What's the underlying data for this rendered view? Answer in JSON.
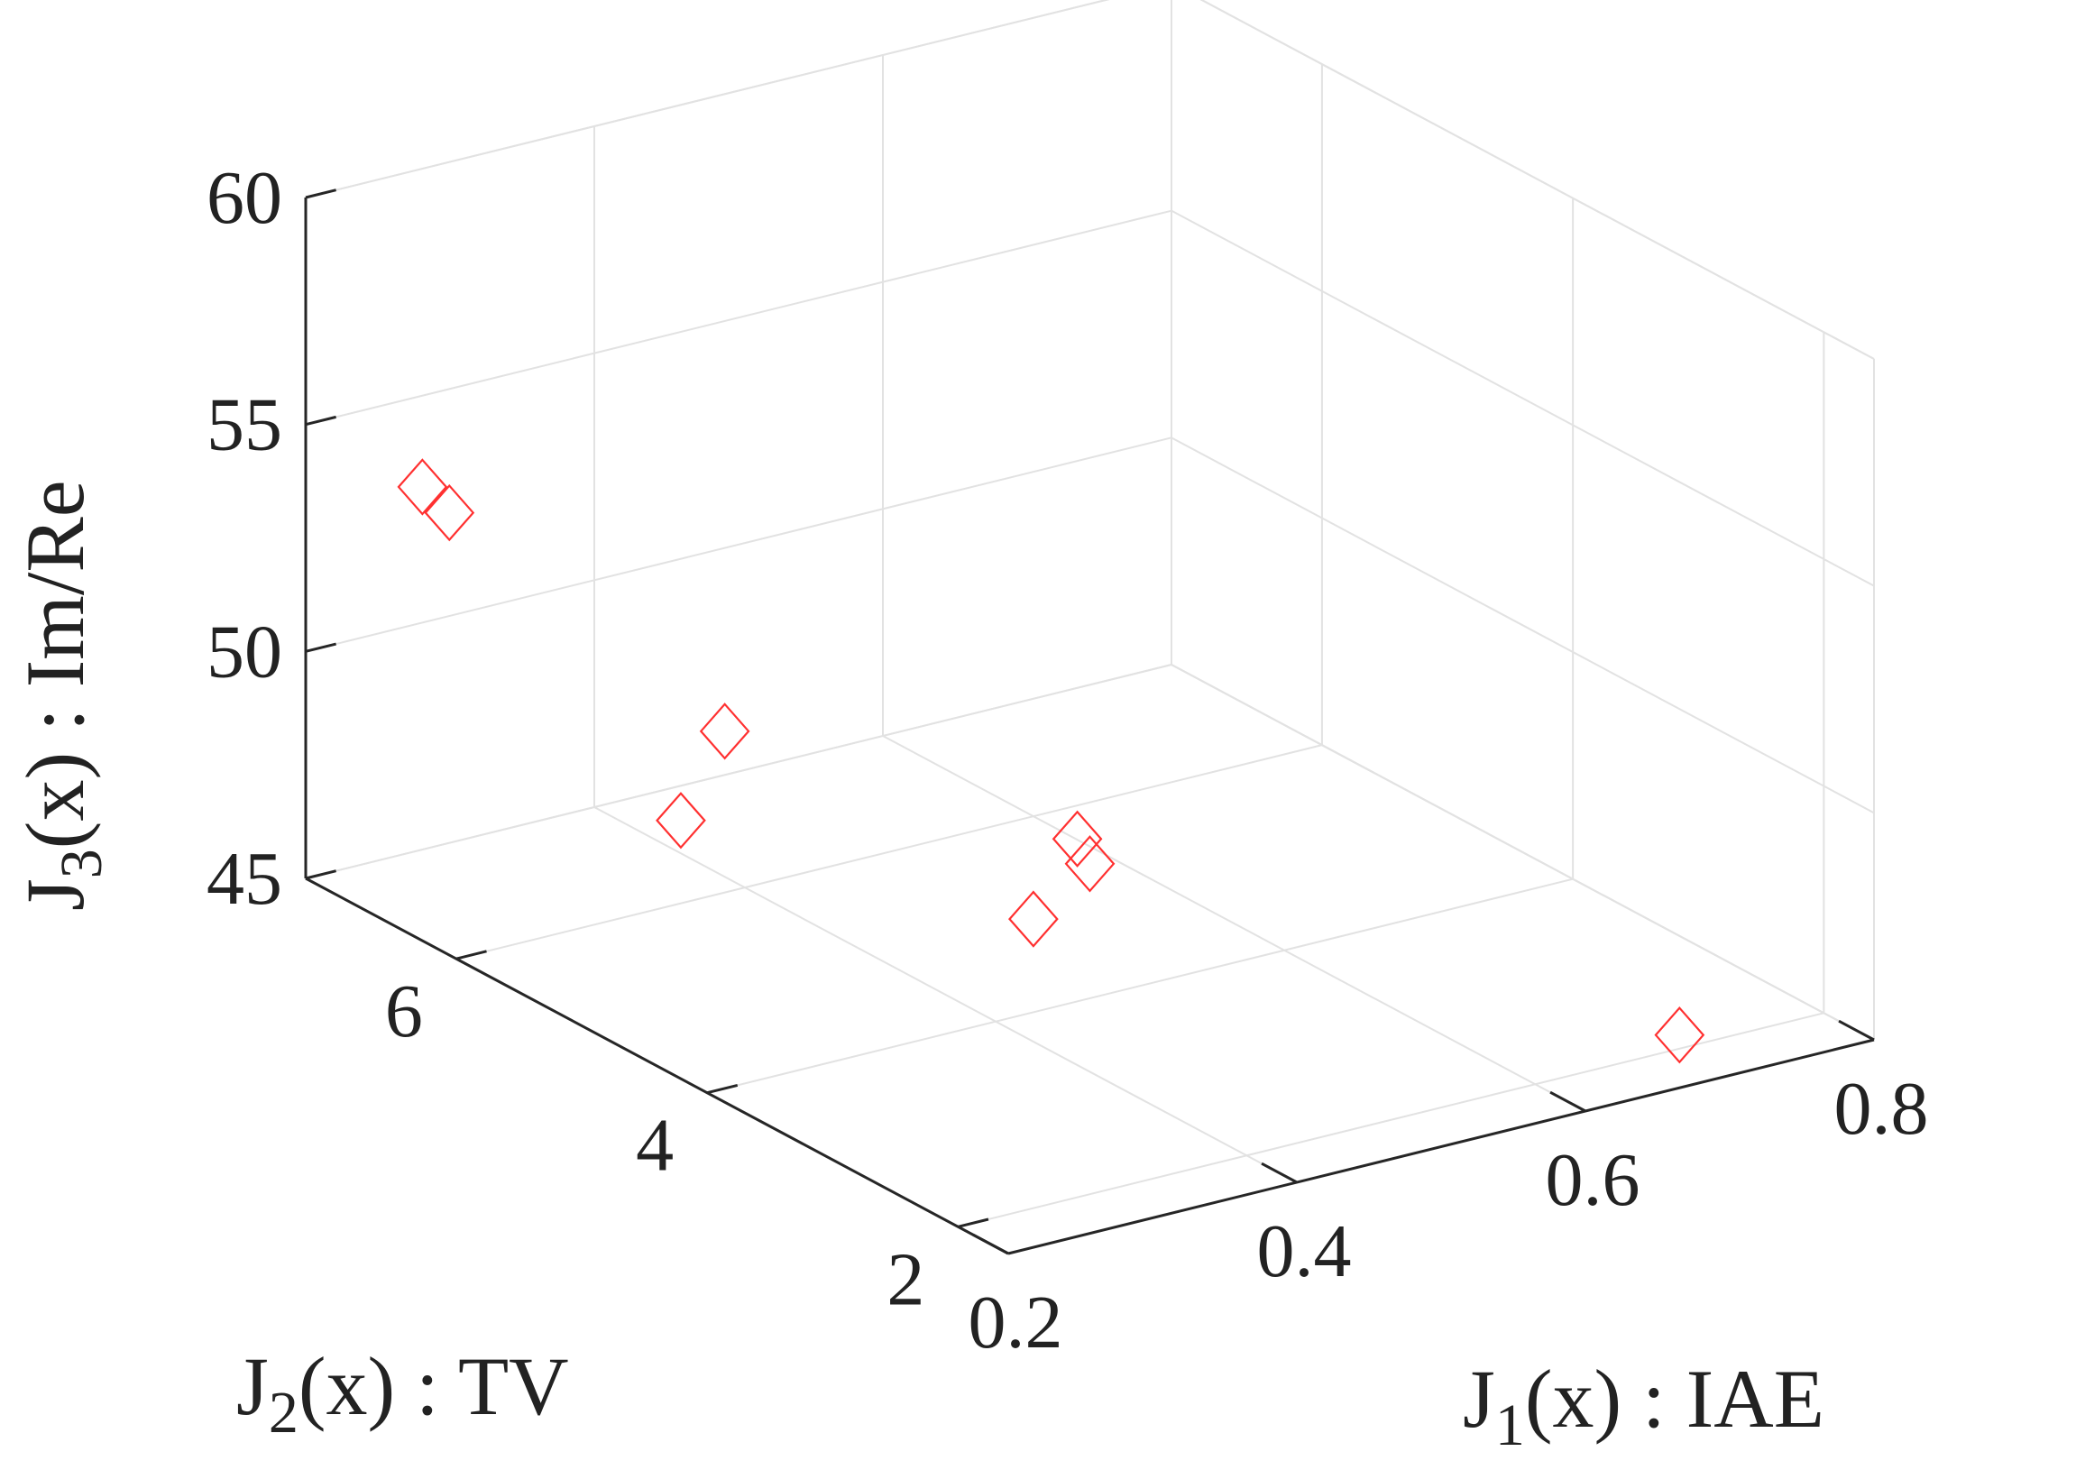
{
  "chart_data": {
    "type": "scatter",
    "marker": "diamond",
    "marker_color": "#ff3030",
    "grid": true,
    "axes": {
      "x": {
        "label_main": "J",
        "label_sub": "1",
        "label_rest": "(x) : IAE",
        "range": [
          0.2,
          0.8
        ],
        "ticks": [
          "0.2",
          "0.4",
          "0.6",
          "0.8"
        ]
      },
      "y": {
        "label_main": "J",
        "label_sub": "2",
        "label_rest": "(x) : TV",
        "range": [
          1.6,
          7.2
        ],
        "ticks": [
          "2",
          "4",
          "6"
        ]
      },
      "z": {
        "label_main": "J",
        "label_sub": "3",
        "label_rest": "(x) : Im/Re",
        "range": [
          45,
          60
        ],
        "ticks": [
          "45",
          "50",
          "55",
          "60"
        ]
      }
    },
    "points": [
      {
        "x": 0.22,
        "y": 6.5,
        "z": 54.5
      },
      {
        "x": 0.23,
        "y": 6.4,
        "z": 54.0
      },
      {
        "x": 0.26,
        "y": 4.9,
        "z": 49.2
      },
      {
        "x": 0.36,
        "y": 5.7,
        "z": 49.2
      },
      {
        "x": 0.4,
        "y": 3.7,
        "z": 47.7
      },
      {
        "x": 0.5,
        "y": 4.5,
        "z": 47.5
      },
      {
        "x": 0.5,
        "y": 4.4,
        "z": 47.1
      },
      {
        "x": 0.7,
        "y": 2.0,
        "z": 45.3
      }
    ]
  }
}
